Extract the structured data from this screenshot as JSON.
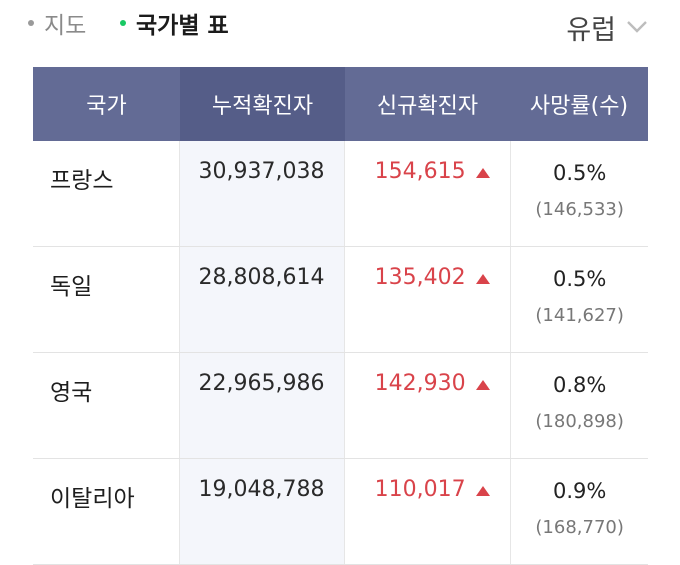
{
  "tabs": {
    "map_label": "지도",
    "table_label": "국가별 표"
  },
  "region_selector": {
    "value": "유럽"
  },
  "table": {
    "headers": [
      "국가",
      "누적확진자",
      "신규확진자",
      "사망률(수)"
    ],
    "rows": [
      {
        "country": "프랑스",
        "cumulative": "30,937,038",
        "new": "154,615",
        "rate": "0.5%",
        "deaths": "(146,533)"
      },
      {
        "country": "독일",
        "cumulative": "28,808,614",
        "new": "135,402",
        "rate": "0.5%",
        "deaths": "(141,627)"
      },
      {
        "country": "영국",
        "cumulative": "22,965,986",
        "new": "142,930",
        "rate": "0.8%",
        "deaths": "(180,898)"
      },
      {
        "country": "이탈리아",
        "cumulative": "19,048,788",
        "new": "110,017",
        "rate": "0.9%",
        "deaths": "(168,770)"
      }
    ]
  },
  "colors": {
    "header_bg": "#636b95",
    "header_active_bg": "#555d88",
    "new_cases": "#d9434a",
    "active_dot": "#18c964"
  },
  "icons": {
    "region_chevron": "chevron-down-icon",
    "increase": "triangle-up-icon"
  }
}
